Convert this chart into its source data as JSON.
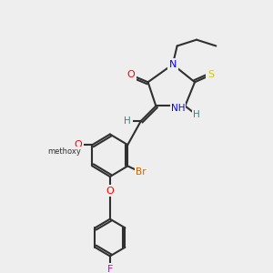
{
  "bg_color": "#eeeeee",
  "bond_color": "#303030",
  "atom_colors": {
    "O": "#ff0000",
    "N": "#0000ff",
    "S": "#cccc00",
    "Br": "#cc6600",
    "F": "#cc00cc",
    "H": "#408080",
    "C": "#303030"
  },
  "figsize": [
    3.0,
    3.0
  ],
  "dpi": 100
}
